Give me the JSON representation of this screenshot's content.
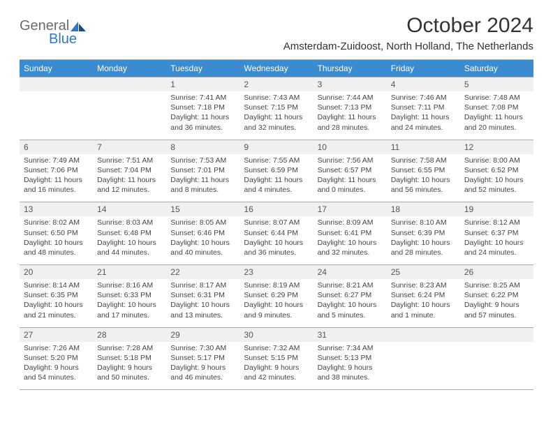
{
  "logo": {
    "text_general": "General",
    "text_blue": "Blue",
    "icon_color1": "#2f78c3",
    "icon_color2": "#1a4e85"
  },
  "title": "October 2024",
  "location": "Amsterdam-Zuidoost, North Holland, The Netherlands",
  "colors": {
    "header_bg": "#3b8bd0",
    "header_fg": "#ffffff",
    "row_border": "#a9a9a9",
    "daynum_bg": "#f0f0f0",
    "text": "#333333"
  },
  "day_headers": [
    "Sunday",
    "Monday",
    "Tuesday",
    "Wednesday",
    "Thursday",
    "Friday",
    "Saturday"
  ],
  "weeks": [
    [
      {
        "num": "",
        "sunrise": "",
        "sunset": "",
        "daylight": ""
      },
      {
        "num": "",
        "sunrise": "",
        "sunset": "",
        "daylight": ""
      },
      {
        "num": "1",
        "sunrise": "Sunrise: 7:41 AM",
        "sunset": "Sunset: 7:18 PM",
        "daylight": "Daylight: 11 hours and 36 minutes."
      },
      {
        "num": "2",
        "sunrise": "Sunrise: 7:43 AM",
        "sunset": "Sunset: 7:15 PM",
        "daylight": "Daylight: 11 hours and 32 minutes."
      },
      {
        "num": "3",
        "sunrise": "Sunrise: 7:44 AM",
        "sunset": "Sunset: 7:13 PM",
        "daylight": "Daylight: 11 hours and 28 minutes."
      },
      {
        "num": "4",
        "sunrise": "Sunrise: 7:46 AM",
        "sunset": "Sunset: 7:11 PM",
        "daylight": "Daylight: 11 hours and 24 minutes."
      },
      {
        "num": "5",
        "sunrise": "Sunrise: 7:48 AM",
        "sunset": "Sunset: 7:08 PM",
        "daylight": "Daylight: 11 hours and 20 minutes."
      }
    ],
    [
      {
        "num": "6",
        "sunrise": "Sunrise: 7:49 AM",
        "sunset": "Sunset: 7:06 PM",
        "daylight": "Daylight: 11 hours and 16 minutes."
      },
      {
        "num": "7",
        "sunrise": "Sunrise: 7:51 AM",
        "sunset": "Sunset: 7:04 PM",
        "daylight": "Daylight: 11 hours and 12 minutes."
      },
      {
        "num": "8",
        "sunrise": "Sunrise: 7:53 AM",
        "sunset": "Sunset: 7:01 PM",
        "daylight": "Daylight: 11 hours and 8 minutes."
      },
      {
        "num": "9",
        "sunrise": "Sunrise: 7:55 AM",
        "sunset": "Sunset: 6:59 PM",
        "daylight": "Daylight: 11 hours and 4 minutes."
      },
      {
        "num": "10",
        "sunrise": "Sunrise: 7:56 AM",
        "sunset": "Sunset: 6:57 PM",
        "daylight": "Daylight: 11 hours and 0 minutes."
      },
      {
        "num": "11",
        "sunrise": "Sunrise: 7:58 AM",
        "sunset": "Sunset: 6:55 PM",
        "daylight": "Daylight: 10 hours and 56 minutes."
      },
      {
        "num": "12",
        "sunrise": "Sunrise: 8:00 AM",
        "sunset": "Sunset: 6:52 PM",
        "daylight": "Daylight: 10 hours and 52 minutes."
      }
    ],
    [
      {
        "num": "13",
        "sunrise": "Sunrise: 8:02 AM",
        "sunset": "Sunset: 6:50 PM",
        "daylight": "Daylight: 10 hours and 48 minutes."
      },
      {
        "num": "14",
        "sunrise": "Sunrise: 8:03 AM",
        "sunset": "Sunset: 6:48 PM",
        "daylight": "Daylight: 10 hours and 44 minutes."
      },
      {
        "num": "15",
        "sunrise": "Sunrise: 8:05 AM",
        "sunset": "Sunset: 6:46 PM",
        "daylight": "Daylight: 10 hours and 40 minutes."
      },
      {
        "num": "16",
        "sunrise": "Sunrise: 8:07 AM",
        "sunset": "Sunset: 6:44 PM",
        "daylight": "Daylight: 10 hours and 36 minutes."
      },
      {
        "num": "17",
        "sunrise": "Sunrise: 8:09 AM",
        "sunset": "Sunset: 6:41 PM",
        "daylight": "Daylight: 10 hours and 32 minutes."
      },
      {
        "num": "18",
        "sunrise": "Sunrise: 8:10 AM",
        "sunset": "Sunset: 6:39 PM",
        "daylight": "Daylight: 10 hours and 28 minutes."
      },
      {
        "num": "19",
        "sunrise": "Sunrise: 8:12 AM",
        "sunset": "Sunset: 6:37 PM",
        "daylight": "Daylight: 10 hours and 24 minutes."
      }
    ],
    [
      {
        "num": "20",
        "sunrise": "Sunrise: 8:14 AM",
        "sunset": "Sunset: 6:35 PM",
        "daylight": "Daylight: 10 hours and 21 minutes."
      },
      {
        "num": "21",
        "sunrise": "Sunrise: 8:16 AM",
        "sunset": "Sunset: 6:33 PM",
        "daylight": "Daylight: 10 hours and 17 minutes."
      },
      {
        "num": "22",
        "sunrise": "Sunrise: 8:17 AM",
        "sunset": "Sunset: 6:31 PM",
        "daylight": "Daylight: 10 hours and 13 minutes."
      },
      {
        "num": "23",
        "sunrise": "Sunrise: 8:19 AM",
        "sunset": "Sunset: 6:29 PM",
        "daylight": "Daylight: 10 hours and 9 minutes."
      },
      {
        "num": "24",
        "sunrise": "Sunrise: 8:21 AM",
        "sunset": "Sunset: 6:27 PM",
        "daylight": "Daylight: 10 hours and 5 minutes."
      },
      {
        "num": "25",
        "sunrise": "Sunrise: 8:23 AM",
        "sunset": "Sunset: 6:24 PM",
        "daylight": "Daylight: 10 hours and 1 minute."
      },
      {
        "num": "26",
        "sunrise": "Sunrise: 8:25 AM",
        "sunset": "Sunset: 6:22 PM",
        "daylight": "Daylight: 9 hours and 57 minutes."
      }
    ],
    [
      {
        "num": "27",
        "sunrise": "Sunrise: 7:26 AM",
        "sunset": "Sunset: 5:20 PM",
        "daylight": "Daylight: 9 hours and 54 minutes."
      },
      {
        "num": "28",
        "sunrise": "Sunrise: 7:28 AM",
        "sunset": "Sunset: 5:18 PM",
        "daylight": "Daylight: 9 hours and 50 minutes."
      },
      {
        "num": "29",
        "sunrise": "Sunrise: 7:30 AM",
        "sunset": "Sunset: 5:17 PM",
        "daylight": "Daylight: 9 hours and 46 minutes."
      },
      {
        "num": "30",
        "sunrise": "Sunrise: 7:32 AM",
        "sunset": "Sunset: 5:15 PM",
        "daylight": "Daylight: 9 hours and 42 minutes."
      },
      {
        "num": "31",
        "sunrise": "Sunrise: 7:34 AM",
        "sunset": "Sunset: 5:13 PM",
        "daylight": "Daylight: 9 hours and 38 minutes."
      },
      {
        "num": "",
        "sunrise": "",
        "sunset": "",
        "daylight": ""
      },
      {
        "num": "",
        "sunrise": "",
        "sunset": "",
        "daylight": ""
      }
    ]
  ]
}
